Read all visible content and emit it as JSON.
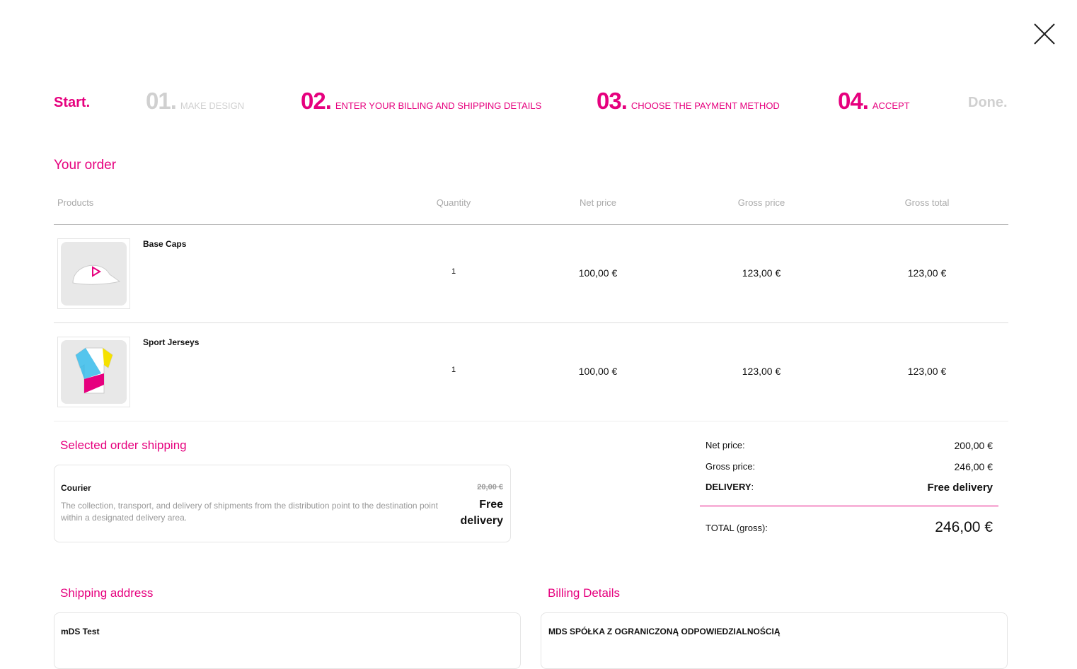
{
  "close_icon": "close-icon",
  "brand_color": "#e6007e",
  "steps": {
    "start": "Start.",
    "s1_num": "01.",
    "s1_label": "MAKE DESIGN",
    "s2_num": "02.",
    "s2_label": "ENTER YOUR BILLING AND SHIPPING DETAILS",
    "s3_num": "03.",
    "s3_label": "CHOOSE THE PAYMENT METHOD",
    "s4_num": "04.",
    "s4_label": "ACCEPT",
    "done": "Done."
  },
  "order": {
    "title": "Your order",
    "headers": [
      "Products",
      "Quantity",
      "Net price",
      "Gross price",
      "Gross total"
    ],
    "rows": [
      {
        "name": "Base Caps",
        "qty": "1",
        "net": "100,00 €",
        "gross": "123,00 €",
        "total": "123,00 €"
      },
      {
        "name": "Sport Jerseys",
        "qty": "1",
        "net": "100,00 €",
        "gross": "123,00 €",
        "total": "123,00 €"
      }
    ]
  },
  "shipping": {
    "title": "Selected order shipping",
    "method": "Courier",
    "description": "The collection, transport, and delivery of shipments from the distribution point to the destination point within a designated delivery area.",
    "old_price": "20,00 €",
    "price": "Free delivery"
  },
  "summary": {
    "net_label": "Net price:",
    "net_value": "200,00 €",
    "gross_label": "Gross price:",
    "gross_value": "246,00 €",
    "delivery_label": "DELIVERY",
    "delivery_colon": ":",
    "delivery_value": "Free delivery",
    "total_label": "TOTAL (gross):",
    "total_value": "246,00 €"
  },
  "shipping_address": {
    "title": "Shipping address",
    "name": "mDS Test"
  },
  "billing": {
    "title": "Billing Details",
    "name": "MDS SPÓŁKA Z OGRANICZONĄ ODPOWIEDZIALNOŚCIĄ"
  }
}
